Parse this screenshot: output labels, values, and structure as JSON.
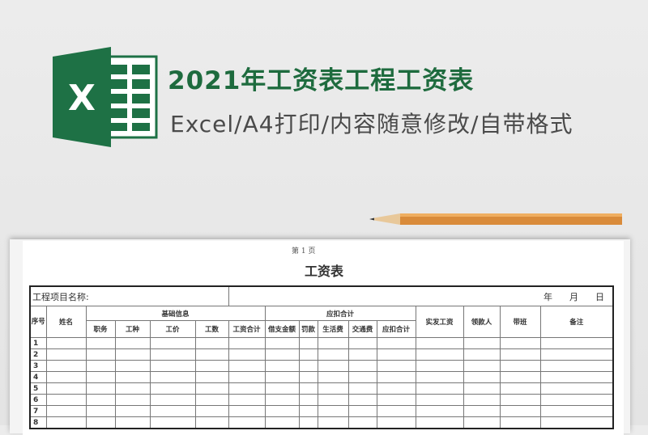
{
  "header": {
    "title": "2021年工资表工程工资表",
    "subtitle": "Excel/A4打印/内容随意修改/自带格式",
    "logo_letter": "X",
    "logo_color": "#1e7145"
  },
  "sheet": {
    "page_label": "第 1 页",
    "title": "工资表",
    "project_label": "工程项目名称:",
    "date_year": "年",
    "date_month": "月",
    "date_day": "日",
    "headers": {
      "seq": "序号",
      "name": "姓名",
      "basic_group": "基础信息",
      "deduct_group": "应扣合计",
      "basic": [
        "职务",
        "工种",
        "工价",
        "工数",
        "工资合计"
      ],
      "deduct": [
        "借支金额",
        "罚款",
        "生活费",
        "交通费",
        "应扣合计"
      ],
      "net_pay": "实发工资",
      "recipient": "领款人",
      "team_lead": "带班",
      "remarks": "备注"
    },
    "rows": [
      "1",
      "2",
      "3",
      "4",
      "5",
      "6",
      "7",
      "8"
    ]
  }
}
